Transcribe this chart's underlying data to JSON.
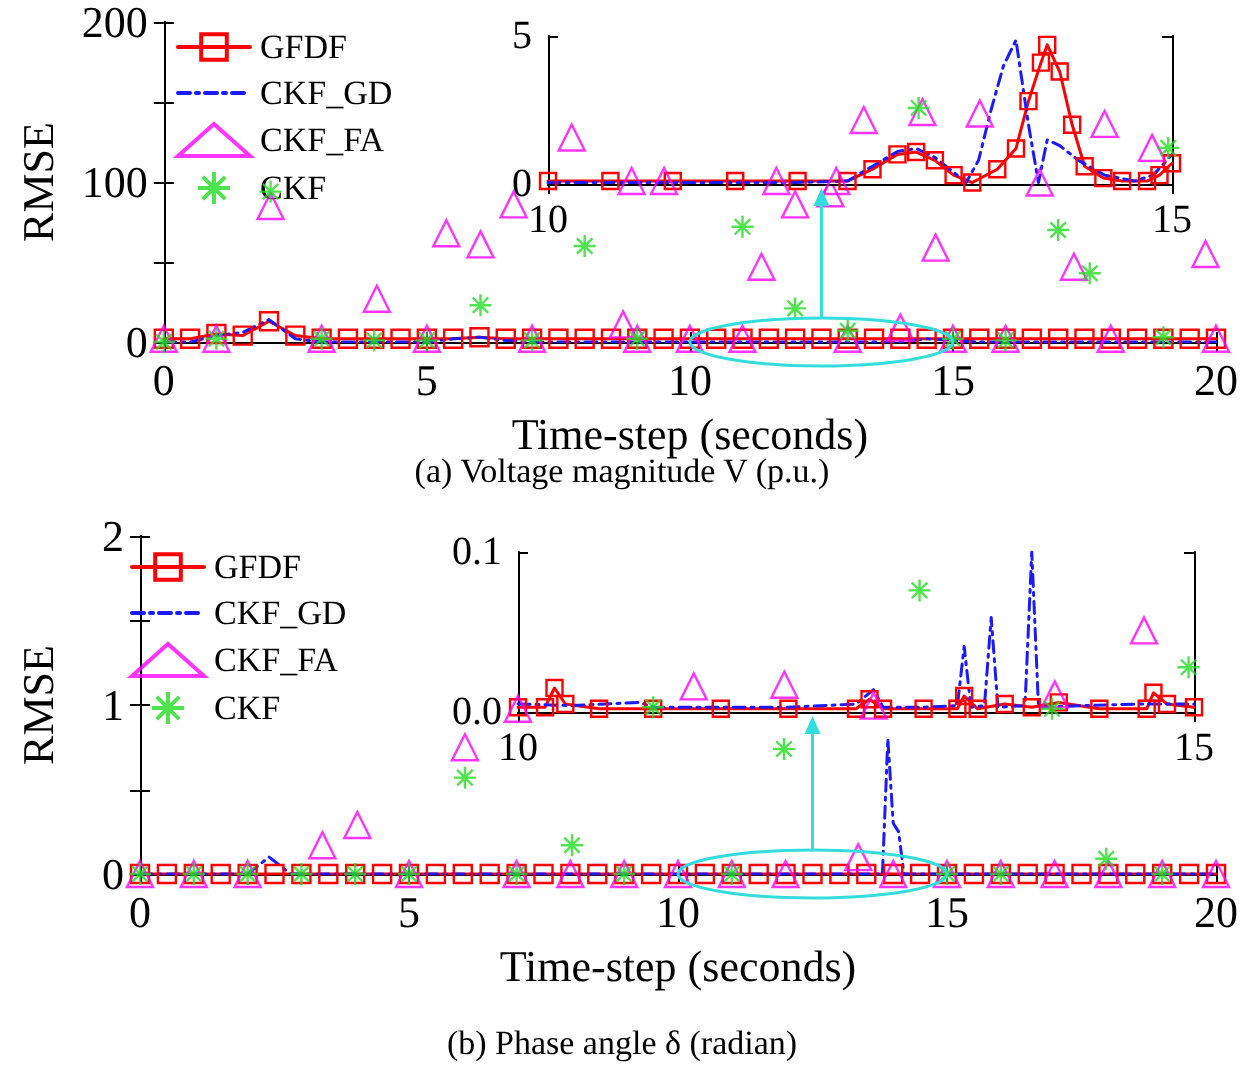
{
  "chart_data": [
    {
      "type": "line",
      "title": "(a) Voltage magnitude V (p.u.)",
      "xlabel": "Time-step (seconds)",
      "ylabel": "RMSE",
      "xlim": [
        0,
        20
      ],
      "xticks": [
        0,
        5,
        10,
        15,
        20
      ],
      "ylim": [
        0,
        200
      ],
      "yticks": [
        0,
        {
          "value": 50,
          "label": null
        },
        100,
        {
          "value": 150,
          "label": null
        },
        200
      ],
      "grid": false,
      "legend": "top left",
      "series": [
        {
          "name": "GFDF",
          "color": "#ff0000",
          "marker": "square",
          "line_style": "solid",
          "x": [
            0,
            0.5,
            1,
            1.5,
            2,
            2.5,
            3,
            3.5,
            4,
            4.5,
            5,
            5.5,
            6,
            6.5,
            7,
            7.5,
            8,
            8.5,
            9,
            9.5,
            10,
            10.5,
            11,
            11.5,
            12,
            12.5,
            13,
            13.5,
            14,
            14.5,
            15,
            15.5,
            16,
            16.5,
            17,
            17.5,
            18,
            18.5,
            19,
            19.5,
            20
          ],
          "values": [
            2,
            2,
            5,
            4,
            13,
            4,
            2,
            2,
            2,
            2,
            2,
            2,
            3,
            2,
            2,
            2,
            2,
            2,
            2,
            2,
            2,
            2,
            2,
            2,
            2,
            2,
            2,
            2,
            2,
            2,
            2,
            2,
            2,
            2,
            2,
            2,
            2,
            2,
            2,
            2,
            2
          ]
        },
        {
          "name": "CKF_GD",
          "color": "#1a1aff",
          "marker": "none",
          "line_style": "dashed",
          "x": [
            0,
            0.5,
            1,
            1.5,
            2,
            2.5,
            3,
            3.5,
            4,
            4.5,
            5,
            5.5,
            6,
            6.5,
            7,
            7.5,
            8,
            8.5,
            9,
            9.5,
            10,
            10.5,
            11,
            11.5,
            12,
            12.5,
            13,
            13.5,
            14,
            14.5,
            15,
            15.5,
            16,
            16.5,
            17,
            17.5,
            18,
            18.5,
            19,
            19.5,
            20
          ],
          "values": [
            0,
            0,
            4,
            6,
            14,
            2,
            0,
            0,
            0,
            0,
            0,
            2,
            3,
            1,
            0,
            0,
            0,
            0,
            0,
            0,
            0,
            0,
            0,
            0,
            0,
            0,
            0,
            0,
            0,
            2,
            1,
            0,
            0,
            0,
            0,
            0,
            0,
            0,
            0,
            0,
            0
          ]
        },
        {
          "name": "CKF_FA",
          "type": "scatter",
          "color": "#ff00ff",
          "marker": "triangle",
          "x": [
            0,
            1,
            2.03,
            3,
            4.05,
            5,
            5.37,
            6.02,
            6.65,
            7,
            8.73,
            9,
            10,
            11,
            11.36,
            12.0,
            12.67,
            13,
            14.0,
            14.67,
            15,
            16,
            17.3,
            18,
            19.8,
            20
          ],
          "values": [
            2,
            2,
            85,
            2,
            27,
            2,
            68,
            61,
            86,
            2,
            11,
            2,
            2,
            2,
            47,
            86,
            93,
            2,
            9,
            59,
            2,
            2,
            47,
            2,
            55,
            2
          ]
        },
        {
          "name": "CKF",
          "type": "scatter",
          "color": "#22dd22",
          "marker": "cross",
          "x": [
            0,
            1,
            2.03,
            3,
            4,
            5,
            6.02,
            7,
            8.0,
            9,
            11.0,
            12.0,
            13.0,
            15,
            16,
            17.0,
            17.6,
            19
          ],
          "values": [
            0,
            2,
            94,
            2,
            1,
            1,
            23,
            1,
            60,
            2,
            72,
            21,
            7,
            2,
            1,
            70,
            43,
            3
          ]
        }
      ]
    },
    {
      "type": "line",
      "xlim": [
        10,
        15
      ],
      "xticks": [
        10,
        15
      ],
      "ylim": [
        0,
        5
      ],
      "yticks": [
        0,
        5
      ],
      "series": [
        {
          "color": "#ff0000",
          "marker": "square",
          "line_style": "solid",
          "x": [
            10,
            10.5,
            11,
            11.5,
            12,
            12.4,
            12.6,
            12.8,
            12.95,
            13.1,
            13.25,
            13.4,
            13.6,
            13.75,
            13.85,
            13.95,
            14.0,
            14.1,
            14.2,
            14.3,
            14.45,
            14.6,
            14.8,
            14.9,
            15
          ],
          "values": [
            0.1,
            0.1,
            0.1,
            0.1,
            0.1,
            0.1,
            0.5,
            1.0,
            1.08,
            0.8,
            0.3,
            0.05,
            0.5,
            1.2,
            2.8,
            4.1,
            4.7,
            3.8,
            2.0,
            0.6,
            0.2,
            0.1,
            0.1,
            0.3,
            0.7
          ]
        },
        {
          "color": "#1a1aff",
          "marker": "none",
          "line_style": "dashed",
          "x": [
            10,
            10.5,
            11,
            11.5,
            12,
            12.4,
            12.6,
            12.8,
            12.95,
            13.1,
            13.25,
            13.35,
            13.45,
            13.55,
            13.65,
            13.75,
            13.85,
            13.93,
            14.0,
            14.1,
            14.25,
            14.46,
            14.7,
            14.85,
            15
          ],
          "values": [
            0.05,
            0.05,
            0.05,
            0.05,
            0.05,
            0.1,
            0.6,
            1.1,
            1.2,
            0.9,
            0.4,
            0.05,
            0.8,
            2.5,
            4.0,
            4.86,
            2.0,
            0.05,
            1.49,
            1.3,
            0.8,
            0.3,
            0.1,
            0.3,
            1.0
          ]
        },
        {
          "type": "scatter",
          "color": "#ff00ff",
          "marker": "triangle",
          "x": [
            10.19,
            10.67,
            10.93,
            11.83,
            12.31,
            12.53,
            13.0,
            13.46,
            13.94,
            14.46,
            14.84
          ],
          "values": [
            1.57,
            0.1,
            0.1,
            0.1,
            0.1,
            2.16,
            2.43,
            2.38,
            0.05,
            2.03,
            1.22
          ]
        },
        {
          "type": "scatter",
          "color": "#22dd22",
          "marker": "cross",
          "x": [
            12.97,
            14.97
          ],
          "values": [
            2.57,
            1.22
          ]
        }
      ]
    },
    {
      "type": "line",
      "title": "(b) Phase angle δ (radian)",
      "xlabel": "Time-step (seconds)",
      "ylabel": "RMSE",
      "xlim": [
        0,
        20
      ],
      "xticks": [
        0,
        5,
        10,
        15,
        20
      ],
      "ylim": [
        0,
        2
      ],
      "yticks": [
        0,
        {
          "value": 0.5,
          "label": null
        },
        1,
        {
          "value": 1.5,
          "label": null
        },
        2
      ],
      "grid": false,
      "legend": "top left",
      "series": [
        {
          "name": "GFDF",
          "color": "#ff0000",
          "marker": "square",
          "line_style": "solid",
          "x": [
            0,
            0.5,
            1,
            1.5,
            2,
            2.5,
            3,
            3.5,
            4,
            4.5,
            5,
            5.5,
            6,
            6.5,
            7,
            7.5,
            8,
            8.5,
            9,
            9.5,
            10,
            10.5,
            11,
            11.5,
            12,
            12.5,
            13,
            13.5,
            14,
            14.5,
            15,
            15.5,
            16,
            16.5,
            17,
            17.5,
            18,
            18.5,
            19,
            19.5,
            20
          ],
          "values": [
            0,
            0,
            0,
            0,
            0,
            0,
            0,
            0,
            0,
            0,
            0,
            0,
            0,
            0,
            0,
            0,
            0,
            0,
            0,
            0,
            0,
            0,
            0,
            0,
            0,
            0,
            0,
            0,
            0,
            0,
            0,
            0,
            0,
            0,
            0,
            0,
            0,
            0,
            0,
            0,
            0
          ]
        },
        {
          "name": "CKF_GD",
          "color": "#1a1aff",
          "marker": "none",
          "line_style": "dashed",
          "x": [
            0,
            1,
            2,
            2.4,
            2.8,
            4,
            6,
            8,
            10,
            12,
            13.8,
            13.9,
            14.0,
            14.1,
            14.2,
            15,
            17,
            20
          ],
          "values": [
            0,
            0,
            0,
            0.1,
            0,
            0,
            0,
            0,
            0,
            0,
            0,
            0.8,
            0.3,
            0.25,
            0,
            0,
            0,
            0
          ]
        },
        {
          "name": "CKF_FA",
          "type": "scatter",
          "color": "#ff00ff",
          "marker": "triangle",
          "x": [
            0,
            1,
            2,
            3.39,
            4.04,
            5,
            6.04,
            7,
            8,
            9,
            10,
            11,
            12,
            13.35,
            14,
            15,
            16,
            17,
            18,
            19,
            20
          ],
          "values": [
            0,
            0,
            0,
            0.17,
            0.29,
            0,
            0.75,
            0,
            0,
            0,
            0,
            0,
            0,
            0.1,
            0,
            0,
            0,
            0,
            0,
            0,
            0
          ]
        },
        {
          "name": "CKF",
          "type": "scatter",
          "color": "#22dd22",
          "marker": "cross",
          "x": [
            0,
            1,
            2,
            3,
            4,
            5,
            6.04,
            7,
            8.03,
            9,
            11,
            11.97,
            15,
            16,
            17.96,
            19
          ],
          "values": [
            0,
            0,
            0,
            0,
            0,
            0,
            0.57,
            0,
            0.17,
            0,
            0,
            0.74,
            0,
            0,
            0.09,
            0
          ]
        }
      ]
    },
    {
      "type": "line",
      "xlim": [
        10,
        15
      ],
      "xticks": [
        10,
        15
      ],
      "ylim": [
        0,
        0.1
      ],
      "yticks": [
        {
          "value": 0,
          "label": "0.0"
        },
        0.1
      ],
      "series": [
        {
          "color": "#ff0000",
          "marker": "square",
          "line_style": "solid",
          "x": [
            10,
            10.2,
            10.27,
            10.35,
            10.6,
            11,
            11.5,
            12,
            12.5,
            12.6,
            12.7,
            13,
            13.25,
            13.3,
            13.4,
            13.6,
            13.8,
            14,
            14.3,
            14.65,
            14.7,
            14.8,
            15
          ],
          "values": [
            0.003,
            0.003,
            0.015,
            0.005,
            0.002,
            0.002,
            0.002,
            0.002,
            0.002,
            0.008,
            0.002,
            0.002,
            0.002,
            0.01,
            0.002,
            0.005,
            0.003,
            0.006,
            0.002,
            0.002,
            0.012,
            0.005,
            0.003
          ]
        },
        {
          "color": "#1a1aff",
          "marker": "none",
          "line_style": "dashed",
          "x": [
            10,
            10.4,
            10.9,
            11,
            11.5,
            12,
            12.5,
            12.63,
            12.7,
            13.0,
            13.25,
            13.3,
            13.35,
            13.45,
            13.5,
            13.55,
            13.75,
            13.8,
            13.85,
            14.2,
            14.6,
            15
          ],
          "values": [
            0.005,
            0.004,
            0.006,
            0.003,
            0.003,
            0.003,
            0.005,
            0.014,
            0.003,
            0.003,
            0.004,
            0.041,
            0.003,
            0.004,
            0.059,
            0.003,
            0.004,
            0.1,
            0.003,
            0.004,
            0.005,
            0.005
          ]
        },
        {
          "type": "scatter",
          "color": "#ff00ff",
          "marker": "triangle",
          "x": [
            10.0,
            11.3,
            11.97,
            12.63,
            13.97,
            14.63
          ],
          "values": [
            0.002,
            0.016,
            0.017,
            0.004,
            0.011,
            0.051
          ]
        },
        {
          "type": "scatter",
          "color": "#22dd22",
          "marker": "cross",
          "x": [
            11.0,
            12.97,
            13.95,
            14.96
          ],
          "values": [
            0.003,
            0.076,
            0.002,
            0.028
          ]
        }
      ]
    }
  ]
}
